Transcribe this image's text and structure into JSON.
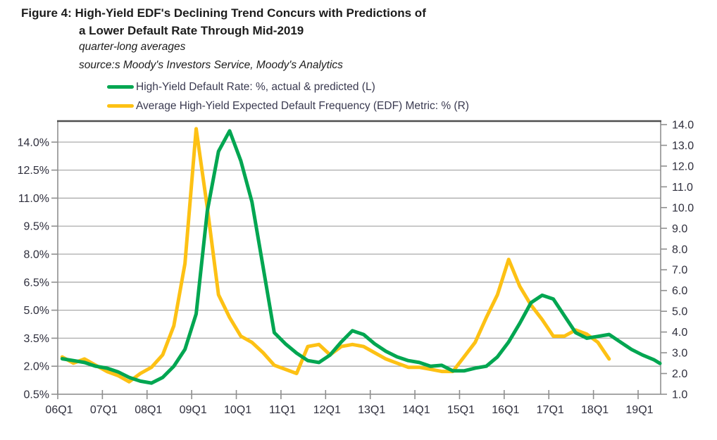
{
  "header": {
    "title_line1": "Figure 4: High-Yield EDF's Declining Trend Concurs with Predictions of",
    "title_line2": "a Lower Default Rate Through Mid-2019",
    "subtitle": "quarter-long averages",
    "source": "source:s Moody's Investors Service, Moody's Analytics"
  },
  "legend": {
    "items": [
      {
        "label": "High-Yield Default Rate: %, actual & predicted (L)",
        "color": "#00a651"
      },
      {
        "label": "Average High-Yield Expected Default Frequency (EDF) Metric: % (R)",
        "color": "#fdc114"
      }
    ]
  },
  "chart_data": {
    "type": "line",
    "title": "High-Yield EDF's Declining Trend Concurs with Predictions of a Lower Default Rate Through Mid-2019",
    "subtitle": "quarter-long averages",
    "grid": "horizontal gridlines at left-axis tick positions",
    "legend_position": "top-left above plot",
    "x_tick_labels": [
      "06Q1",
      "07Q1",
      "08Q1",
      "09Q1",
      "10Q1",
      "11Q1",
      "12Q1",
      "13Q1",
      "14Q1",
      "15Q1",
      "16Q1",
      "17Q1",
      "18Q1",
      "19Q1"
    ],
    "left_axis": {
      "tick_labels": [
        "0.5%",
        "2.0%",
        "3.5%",
        "5.0%",
        "6.5%",
        "8.0%",
        "9.5%",
        "11.0%",
        "12.5%",
        "14.0%"
      ],
      "tick_values": [
        0.5,
        2.0,
        3.5,
        5.0,
        6.5,
        8.0,
        9.5,
        11.0,
        12.5,
        14.0
      ],
      "min": 0.5,
      "max": 15.1
    },
    "right_axis": {
      "tick_labels": [
        "1.0",
        "2.0",
        "3.0",
        "4.0",
        "5.0",
        "6.0",
        "7.0",
        "8.0",
        "9.0",
        "10.0",
        "11.0",
        "12.0",
        "13.0",
        "14.0"
      ],
      "tick_values": [
        1,
        2,
        3,
        4,
        5,
        6,
        7,
        8,
        9,
        10,
        11,
        12,
        13,
        14
      ],
      "min": 1.0,
      "max": 14.0
    },
    "series": [
      {
        "name": "High-Yield Default Rate: %, actual & predicted (L)",
        "axis": "left",
        "color": "#00a651",
        "start_quarter": "2006Q1",
        "frequency": "quarterly",
        "values": [
          2.4,
          2.3,
          2.2,
          2.0,
          1.9,
          1.7,
          1.4,
          1.2,
          1.1,
          1.4,
          2.0,
          2.9,
          4.8,
          10.3,
          13.5,
          14.6,
          13.0,
          10.8,
          7.3,
          3.8,
          3.2,
          2.7,
          2.3,
          2.2,
          2.6,
          3.3,
          3.9,
          3.7,
          3.2,
          2.8,
          2.5,
          2.3,
          2.2,
          2.0,
          2.05,
          1.75,
          1.75,
          1.9,
          2.0,
          2.5,
          3.3,
          4.3,
          5.4,
          5.8,
          5.6,
          4.7,
          3.8,
          3.5,
          3.6,
          3.7,
          3.3,
          2.9,
          2.6,
          2.35,
          2.15
        ]
      },
      {
        "name": "Average High-Yield Expected Default Frequency (EDF) Metric: % (R)",
        "axis": "right",
        "color": "#fdc114",
        "start_quarter": "2006Q1",
        "frequency": "quarterly",
        "values": [
          2.8,
          2.5,
          2.7,
          2.4,
          2.1,
          1.9,
          1.6,
          2.0,
          2.3,
          2.9,
          4.3,
          7.3,
          13.8,
          10.0,
          5.8,
          4.7,
          3.8,
          3.5,
          3.0,
          2.4,
          2.2,
          2.0,
          3.3,
          3.4,
          2.9,
          3.3,
          3.4,
          3.3,
          3.0,
          2.7,
          2.5,
          2.3,
          2.3,
          2.2,
          2.1,
          2.1,
          2.8,
          3.5,
          4.7,
          5.8,
          7.5,
          6.2,
          5.3,
          4.6,
          3.8,
          3.8,
          4.1,
          3.9,
          3.5,
          2.7
        ]
      }
    ]
  },
  "style_colors": {
    "gridline": "#ababab",
    "axis_line": "#8f8f8f",
    "plot_top_border": "#4f4f4f",
    "axis_text": "#2e2e3c"
  }
}
